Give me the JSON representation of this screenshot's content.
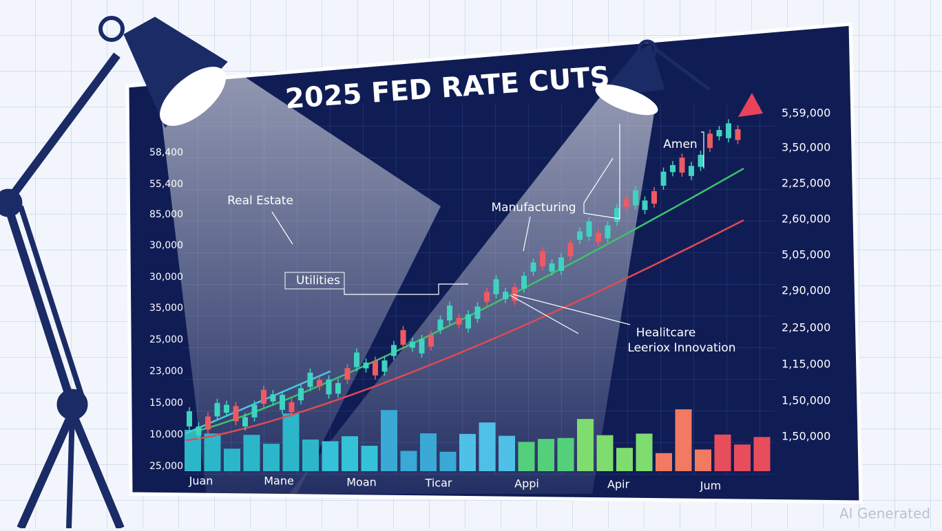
{
  "title": "2025 FED RATE CUTS",
  "left_axis_labels": [
    "58,400",
    "55,400",
    "85,000",
    "30,000",
    "30,000",
    "35,000",
    "25,000",
    "23,000",
    "15,000",
    "10,000",
    "25,000"
  ],
  "right_axis_labels": [
    "5,59,000",
    "3,50,000",
    "2,25,000",
    "2,60,000",
    "5,05,000",
    "2,90,000",
    "2,25,000",
    "1,15,000",
    "1,50,000",
    "1,50,000"
  ],
  "x_labels": [
    "Juan",
    "Mane",
    "Moan",
    "Ticar",
    "Appi",
    "Apir",
    "Jum"
  ],
  "annotations": [
    "Real Estate",
    "Utilities",
    "Manufacturing",
    "Amen",
    "Healitcare",
    "Leeriox Innovation"
  ],
  "watermark": "AI Generated"
}
